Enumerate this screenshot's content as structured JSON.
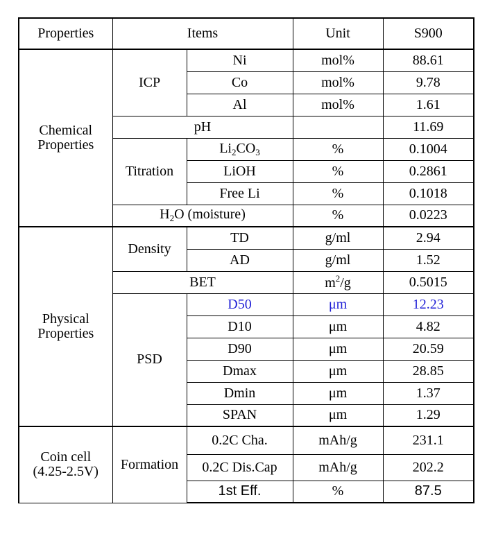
{
  "header": {
    "properties": "Properties",
    "items": "Items",
    "unit": "Unit",
    "sample": "S900"
  },
  "sections": {
    "chemical": {
      "label_line1": "Chemical",
      "label_line2": "Properties"
    },
    "physical": {
      "label_line1": "Physical",
      "label_line2": "Properties"
    },
    "coin": {
      "label_line1": "Coin cell",
      "label_line2": "(4.25-2.5V)"
    }
  },
  "groups": {
    "icp": "ICP",
    "titration": "Titration",
    "density": "Density",
    "psd": "PSD",
    "formation": "Formation"
  },
  "rows": {
    "ni": {
      "item": "Ni",
      "unit": "mol%",
      "value": "88.61"
    },
    "co": {
      "item": "Co",
      "unit": "mol%",
      "value": "9.78"
    },
    "al": {
      "item": "Al",
      "unit": "mol%",
      "value": "1.61"
    },
    "ph": {
      "item": "pH",
      "unit": "",
      "value": "11.69"
    },
    "li2co3": {
      "item_main": "Li",
      "item_sub1": "2",
      "item_mid": "CO",
      "item_sub2": "3",
      "unit": "%",
      "value": "0.1004"
    },
    "lioh": {
      "item": "LiOH",
      "unit": "%",
      "value": "0.2861"
    },
    "free_li": {
      "item": "Free Li",
      "unit": "%",
      "value": "0.1018"
    },
    "h2o": {
      "item_main": "H",
      "item_sub": "2",
      "item_rest": "O (moisture)",
      "unit": "%",
      "value": "0.0223"
    },
    "td": {
      "item": "TD",
      "unit": "g/ml",
      "value": "2.94"
    },
    "ad": {
      "item": "AD",
      "unit": "g/ml",
      "value": "1.52"
    },
    "bet": {
      "item": "BET",
      "unit_main": "m",
      "unit_sup": "2",
      "unit_rest": "/g",
      "value": "0.5015"
    },
    "d50": {
      "item": "D50",
      "unit": "μm",
      "value": "12.23"
    },
    "d10": {
      "item": "D10",
      "unit": "μm",
      "value": "4.82"
    },
    "d90": {
      "item": "D90",
      "unit": "μm",
      "value": "20.59"
    },
    "dmax": {
      "item": "Dmax",
      "unit": "μm",
      "value": "28.85"
    },
    "dmin": {
      "item": "Dmin",
      "unit": "μm",
      "value": "1.37"
    },
    "span": {
      "item": "SPAN",
      "unit": "μm",
      "value": "1.29"
    },
    "cha": {
      "item": "0.2C Cha.",
      "unit": "mAh/g",
      "value": "231.1"
    },
    "dis_cap": {
      "item": "0.2C Dis.Cap",
      "unit": "mAh/g",
      "value": "202.2"
    },
    "eff": {
      "item": "1st Eff.",
      "unit": "%",
      "value": "87.5"
    }
  },
  "colors": {
    "text": "#000000",
    "highlight": "#1f1fd6",
    "border": "#000000",
    "background": "#ffffff"
  }
}
